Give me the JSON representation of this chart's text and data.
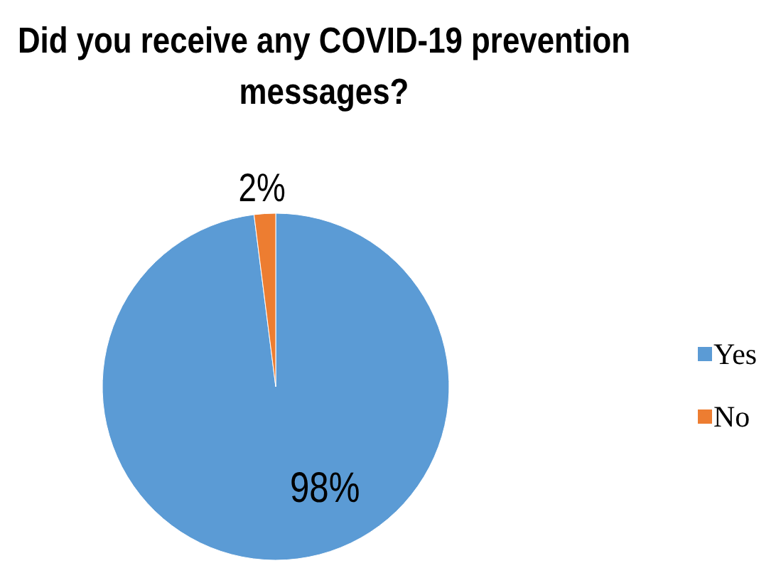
{
  "chart_data": {
    "type": "pie",
    "title": "Did you receive any COVID-19 prevention messages?",
    "categories": [
      "Yes",
      "No"
    ],
    "values": [
      98,
      2
    ],
    "colors": [
      "#5b9bd5",
      "#ed7d31"
    ],
    "value_labels": [
      "98%",
      "2%"
    ],
    "legend": "right"
  }
}
